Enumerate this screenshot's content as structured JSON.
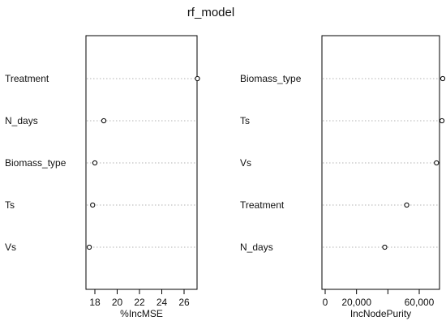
{
  "chart_data": {
    "type": "dotchart",
    "title": "rf_model",
    "panels": [
      {
        "xlabel": "%IncMSE",
        "categories": [
          "Treatment",
          "N_days",
          "Biomass_type",
          "Ts",
          "Vs"
        ],
        "values": [
          27.2,
          18.8,
          18.0,
          17.8,
          17.5
        ],
        "xlim": [
          17.2,
          27.6
        ],
        "ticks": [
          18,
          20,
          22,
          24,
          26
        ],
        "tick_labels": [
          "18",
          "20",
          "22",
          "24",
          "26"
        ]
      },
      {
        "xlabel": "IncNodePurity",
        "categories": [
          "Biomass_type",
          "Ts",
          "Vs",
          "Treatment",
          "N_days"
        ],
        "values": [
          75000,
          74500,
          71000,
          52000,
          38000
        ],
        "xlim": [
          -2500,
          78000
        ],
        "ticks": [
          0,
          20000,
          40000,
          60000
        ],
        "tick_labels": [
          "0",
          "20,000",
          "",
          "60,000"
        ]
      }
    ]
  }
}
